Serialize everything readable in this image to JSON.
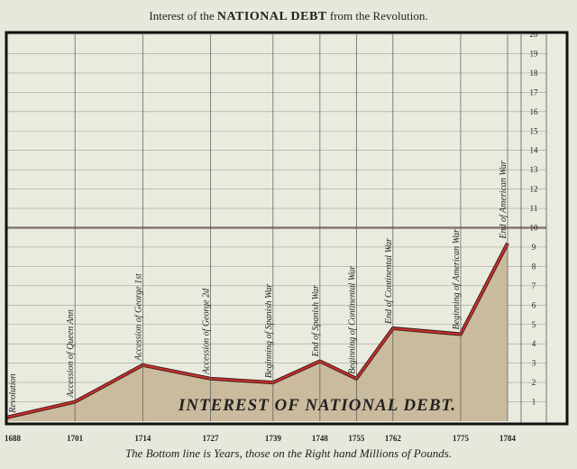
{
  "chart_data": {
    "type": "area",
    "title_parts": [
      "Interest of the ",
      "NATIONAL DEBT",
      " from the Revolution."
    ],
    "inner_label": "INTEREST OF NATIONAL DEBT.",
    "footer": "The Bottom line is Years, those on the Right hand Millions of Pounds.",
    "xlim": [
      1688,
      1784
    ],
    "ylim": [
      0,
      20
    ],
    "y_ticks": [
      1,
      2,
      3,
      4,
      5,
      6,
      7,
      8,
      9,
      10,
      11,
      12,
      13,
      14,
      15,
      16,
      17,
      18,
      19,
      20
    ],
    "y_axis_position": "right",
    "grid": true,
    "x": [
      1688,
      1701,
      1714,
      1727,
      1739,
      1748,
      1755,
      1762,
      1775,
      1784
    ],
    "x_tick_labels": [
      "1688",
      "1701",
      "1714",
      "1727",
      "1739",
      "1748",
      "1755",
      "1762",
      "1775",
      "1784"
    ],
    "values": [
      0.2,
      1.0,
      2.9,
      2.2,
      2.0,
      3.1,
      2.2,
      4.8,
      4.5,
      9.2
    ],
    "events": [
      {
        "year": 1688,
        "label": "Revolution"
      },
      {
        "year": 1701,
        "label": "Accession of Queen Ann"
      },
      {
        "year": 1714,
        "label": "Accession of George 1st"
      },
      {
        "year": 1727,
        "label": "Accession of George 2d"
      },
      {
        "year": 1739,
        "label": "Beginning of Spanish War"
      },
      {
        "year": 1748,
        "label": "End of Spanish War"
      },
      {
        "year": 1755,
        "label": "Beginning of Continental War"
      },
      {
        "year": 1762,
        "label": "End of Continental War"
      },
      {
        "year": 1775,
        "label": "Beginning of American War"
      },
      {
        "year": 1784,
        "label": "End of American War"
      }
    ],
    "colors": {
      "fill": "#c9b89a",
      "line": "#c8302e",
      "paper": "#e6e8dc",
      "grid": "#8a8378"
    }
  }
}
